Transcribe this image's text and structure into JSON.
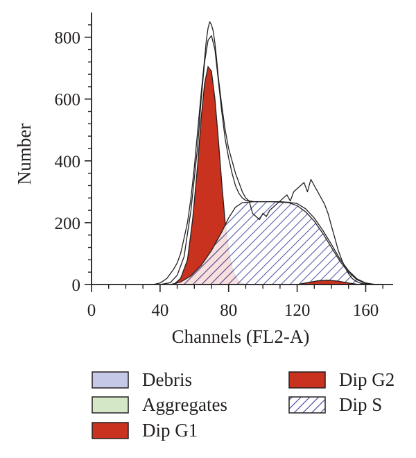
{
  "chart_data": {
    "type": "area",
    "title": "",
    "xlabel": "Channels (FL2-A)",
    "ylabel": "Number",
    "xlim": [
      0,
      176
    ],
    "ylim": [
      0,
      880
    ],
    "x_ticks": [
      0,
      40,
      80,
      120,
      160
    ],
    "x_tick_labels": [
      "0",
      "40",
      "80",
      "120",
      "160"
    ],
    "y_ticks": [
      0,
      200,
      400,
      600,
      800
    ],
    "y_tick_labels": [
      "0",
      "200",
      "400",
      "600",
      "800"
    ],
    "grid": false,
    "legend": {
      "placement": "bottom",
      "items": [
        {
          "label": "Debris",
          "color": "#c6c8e8",
          "pattern": "solid"
        },
        {
          "label": "Aggregates",
          "color": "#d4e8c8",
          "pattern": "solid"
        },
        {
          "label": "Dip G1",
          "color": "#c8321e",
          "pattern": "solid"
        },
        {
          "label": "Dip G2",
          "color": "#c8321e",
          "pattern": "solid"
        },
        {
          "label": "Dip S",
          "color": "#3a3f9a",
          "pattern": "hatch"
        }
      ]
    },
    "series": [
      {
        "name": "Dip G1",
        "fill": "#c8321e",
        "x": [
          48,
          52,
          56,
          59,
          62,
          64,
          66,
          68,
          70,
          72,
          74,
          76,
          78,
          80,
          82,
          84,
          86,
          90
        ],
        "y": [
          0,
          20,
          80,
          210,
          390,
          540,
          650,
          705,
          690,
          600,
          470,
          330,
          200,
          110,
          55,
          25,
          8,
          0
        ]
      },
      {
        "name": "Dip S",
        "fill": "hatch",
        "x": [
          46,
          52,
          58,
          64,
          70,
          76,
          80,
          84,
          88,
          95,
          105,
          115,
          120,
          125,
          130,
          135,
          140,
          145,
          150,
          155,
          160,
          165
        ],
        "y": [
          0,
          8,
          28,
          62,
          110,
          170,
          215,
          250,
          265,
          268,
          268,
          265,
          255,
          235,
          205,
          165,
          120,
          75,
          40,
          15,
          4,
          0
        ]
      },
      {
        "name": "Dip G2",
        "fill": "#c8321e",
        "x": [
          120,
          126,
          132,
          138,
          144,
          150,
          156
        ],
        "y": [
          0,
          6,
          12,
          14,
          11,
          5,
          0
        ]
      },
      {
        "name": "",
        "role": "raw data trace",
        "x": [
          30,
          36,
          40,
          42,
          44,
          46,
          48,
          50,
          52,
          54,
          56,
          58,
          60,
          62,
          64,
          66,
          67,
          68,
          69,
          70,
          71,
          72,
          73,
          74,
          76,
          78,
          80,
          82,
          84,
          86,
          88,
          90,
          92,
          94,
          96,
          98,
          100,
          102,
          104,
          106,
          108,
          110,
          112,
          114,
          116,
          118,
          120,
          122,
          124,
          126,
          128,
          130,
          132,
          134,
          136,
          138,
          140,
          142,
          144,
          146,
          148,
          150,
          152,
          154,
          156,
          158,
          160,
          162,
          164,
          166,
          170
        ],
        "y": [
          0,
          0,
          5,
          12,
          20,
          35,
          50,
          70,
          100,
          150,
          200,
          280,
          380,
          500,
          620,
          730,
          790,
          830,
          850,
          840,
          820,
          780,
          730,
          670,
          580,
          500,
          440,
          400,
          360,
          330,
          300,
          280,
          270,
          230,
          220,
          210,
          230,
          220,
          240,
          250,
          260,
          270,
          280,
          290,
          270,
          300,
          310,
          320,
          330,
          300,
          340,
          320,
          300,
          280,
          260,
          230,
          190,
          150,
          110,
          80,
          55,
          35,
          20,
          12,
          6,
          3,
          2,
          1,
          0,
          0,
          0
        ]
      },
      {
        "name": "",
        "role": "fitted model envelope",
        "x": [
          40,
          46,
          50,
          54,
          58,
          62,
          64,
          66,
          68,
          70,
          72,
          74,
          76,
          78,
          80,
          82,
          84,
          86,
          88,
          90,
          95,
          100,
          105,
          110,
          115,
          120,
          125,
          130,
          135,
          140,
          145,
          150,
          155,
          160,
          165,
          170
        ],
        "y": [
          0,
          6,
          30,
          90,
          240,
          450,
          600,
          720,
          790,
          805,
          760,
          660,
          560,
          470,
          410,
          360,
          320,
          295,
          280,
          272,
          268,
          268,
          268,
          268,
          266,
          262,
          245,
          215,
          175,
          130,
          82,
          45,
          18,
          5,
          1,
          0
        ]
      }
    ]
  }
}
